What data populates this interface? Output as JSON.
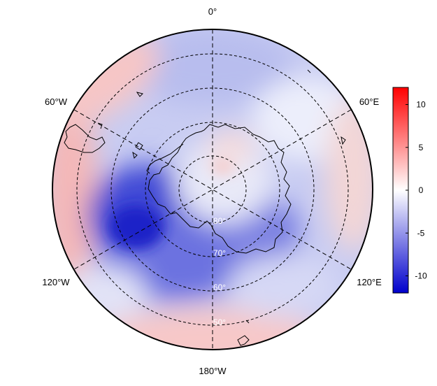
{
  "map": {
    "projection": "south-polar-stereographic",
    "longitude_labels": {
      "top": "0°",
      "upper_left": "60°W",
      "upper_right": "60°E",
      "lower_left": "120°W",
      "lower_right": "120°E",
      "bottom": "180°W"
    },
    "latitude_labels": [
      "80°",
      "70°",
      "60°",
      "50°"
    ]
  },
  "colorbar": {
    "ticks": [
      {
        "value": 10,
        "label": "10"
      },
      {
        "value": 5,
        "label": "5"
      },
      {
        "value": 0,
        "label": "0"
      },
      {
        "value": -5,
        "label": "-5"
      },
      {
        "value": -10,
        "label": "-10"
      }
    ],
    "range": [
      -12,
      12
    ],
    "colors": {
      "high": "#ff0000",
      "mid": "#ffffff",
      "low": "#0000cc"
    }
  }
}
